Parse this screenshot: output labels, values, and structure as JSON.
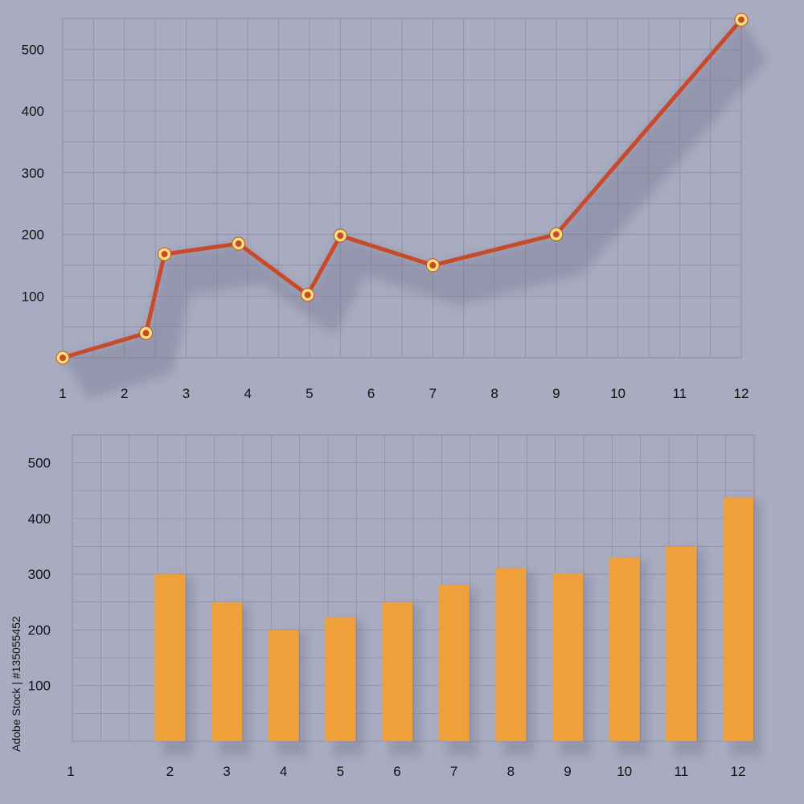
{
  "chart_data": [
    {
      "type": "line",
      "x": [
        1,
        2.35,
        2.65,
        3.85,
        4.97,
        5.5,
        7,
        9,
        12
      ],
      "values": [
        0,
        40,
        168,
        185,
        102,
        198,
        150,
        200,
        548
      ],
      "x_ticks": [
        "1",
        "2",
        "3",
        "4",
        "5",
        "6",
        "7",
        "8",
        "9",
        "10",
        "11",
        "12"
      ],
      "y_ticks": [
        "100",
        "200",
        "300",
        "400",
        "500"
      ],
      "xlim": [
        1,
        12
      ],
      "ylim": [
        0,
        550
      ],
      "grid": true,
      "colors": {
        "line": "#c94a2a",
        "marker_fill": "#f7e27a",
        "marker_ring": "#c94a2a",
        "grid": "#8c8ea3"
      }
    },
    {
      "type": "bar",
      "categories": [
        "1",
        "2",
        "3",
        "4",
        "5",
        "6",
        "7",
        "8",
        "9",
        "10",
        "11",
        "12"
      ],
      "values": [
        null,
        300,
        250,
        200,
        222,
        250,
        280,
        311,
        301,
        330,
        350,
        438
      ],
      "y_ticks": [
        "100",
        "200",
        "300",
        "400",
        "500"
      ],
      "ylim": [
        0,
        550
      ],
      "grid": true,
      "colors": {
        "bar": "#f0a03a",
        "grid": "#8c8ea3"
      }
    }
  ],
  "credit": "Adobe Stock | #135055452"
}
